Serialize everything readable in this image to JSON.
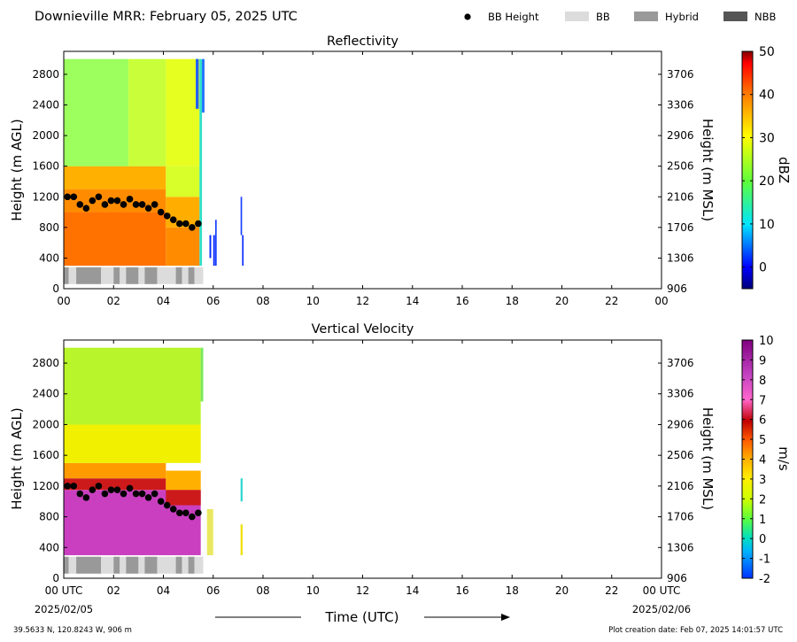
{
  "page": {
    "title": "Downieville MRR:  February 05, 2025 UTC",
    "footer_left": "39.5633 N, 120.8243 W, 906 m",
    "footer_right": "Plot creation date: Feb 07, 2025 14:01:57 UTC",
    "xaxis_label": "Time (UTC)",
    "date_start": "2025/02/05",
    "date_end": "2025/02/06"
  },
  "legend": {
    "items": [
      {
        "label": "BB Height",
        "kind": "marker",
        "color": "#000000"
      },
      {
        "label": "BB",
        "kind": "swatch",
        "color": "#dcdcdc"
      },
      {
        "label": "Hybrid",
        "kind": "swatch",
        "color": "#999999"
      },
      {
        "label": "NBB",
        "kind": "swatch",
        "color": "#555555"
      }
    ]
  },
  "chart_data": [
    {
      "type": "heatmap",
      "title": "Reflectivity",
      "ylabel": "Height (m AGL)",
      "y2label": "Height (m MSL)",
      "colorbar_label": "dBZ",
      "xlim": [
        0,
        24
      ],
      "ylim": [
        0,
        3100
      ],
      "y2_offset": 906,
      "xticks": [
        "00",
        "02",
        "04",
        "06",
        "08",
        "10",
        "12",
        "14",
        "16",
        "18",
        "20",
        "22",
        "00"
      ],
      "yticks": [
        0,
        400,
        800,
        1200,
        1600,
        2000,
        2400,
        2800
      ],
      "y2ticks": [
        "906",
        "1306",
        "1706",
        "2106",
        "2506",
        "2906",
        "3306",
        "3706"
      ],
      "colorbar": {
        "min": -5,
        "max": 50,
        "ticks": [
          "0",
          "10",
          "20",
          "30",
          "40",
          "50"
        ],
        "tick_values": [
          0,
          10,
          20,
          30,
          40,
          50
        ]
      },
      "bb_height": {
        "x": [
          0.15,
          0.4,
          0.65,
          0.9,
          1.15,
          1.4,
          1.65,
          1.9,
          2.15,
          2.4,
          2.65,
          2.9,
          3.15,
          3.4,
          3.65,
          3.9,
          4.15,
          4.4,
          4.65,
          4.9,
          5.15,
          5.4
        ],
        "y": [
          1200,
          1200,
          1100,
          1050,
          1150,
          1200,
          1100,
          1150,
          1150,
          1100,
          1170,
          1100,
          1100,
          1050,
          1100,
          1000,
          950,
          900,
          850,
          850,
          800,
          850
        ]
      },
      "bb_type_bar": {
        "segments": [
          {
            "start": 0.0,
            "end": 0.2,
            "type": "Hybrid"
          },
          {
            "start": 0.2,
            "end": 0.5,
            "type": "BB"
          },
          {
            "start": 0.5,
            "end": 1.5,
            "type": "Hybrid"
          },
          {
            "start": 1.5,
            "end": 2.0,
            "type": "BB"
          },
          {
            "start": 2.0,
            "end": 2.25,
            "type": "Hybrid"
          },
          {
            "start": 2.25,
            "end": 2.5,
            "type": "BB"
          },
          {
            "start": 2.5,
            "end": 3.0,
            "type": "Hybrid"
          },
          {
            "start": 3.0,
            "end": 3.25,
            "type": "BB"
          },
          {
            "start": 3.25,
            "end": 3.75,
            "type": "Hybrid"
          },
          {
            "start": 3.75,
            "end": 4.5,
            "type": "BB"
          },
          {
            "start": 4.5,
            "end": 4.75,
            "type": "Hybrid"
          },
          {
            "start": 4.75,
            "end": 5.0,
            "type": "BB"
          },
          {
            "start": 5.0,
            "end": 5.25,
            "type": "Hybrid"
          },
          {
            "start": 5.25,
            "end": 5.6,
            "type": "BB"
          }
        ]
      },
      "fields": [
        {
          "x0": 0.0,
          "x1": 4.1,
          "y0": 300,
          "y1": 1000,
          "color": "#ff7200"
        },
        {
          "x0": 0.0,
          "x1": 4.1,
          "y0": 1000,
          "y1": 1300,
          "color": "#ff8c00"
        },
        {
          "x0": 0.0,
          "x1": 4.1,
          "y0": 1300,
          "y1": 1600,
          "color": "#ffb000"
        },
        {
          "x0": 4.1,
          "x1": 5.45,
          "y0": 300,
          "y1": 800,
          "color": "#ff8c00"
        },
        {
          "x0": 4.1,
          "x1": 5.45,
          "y0": 800,
          "y1": 1200,
          "color": "#ffae00"
        },
        {
          "x0": 4.1,
          "x1": 5.45,
          "y0": 1200,
          "y1": 1600,
          "color": "#d8ff2a"
        },
        {
          "x0": 0.0,
          "x1": 2.6,
          "y0": 1600,
          "y1": 3000,
          "color": "#9cff5e"
        },
        {
          "x0": 2.6,
          "x1": 4.1,
          "y0": 1600,
          "y1": 3000,
          "color": "#c8ff3a"
        },
        {
          "x0": 4.1,
          "x1": 5.45,
          "y0": 1600,
          "y1": 3000,
          "color": "#e6ff20"
        },
        {
          "x0": 5.45,
          "x1": 5.55,
          "y0": 300,
          "y1": 3000,
          "color": "#2ee0c8"
        },
        {
          "x0": 5.3,
          "x1": 5.42,
          "y0": 2350,
          "y1": 3000,
          "color": "#1d5fff"
        },
        {
          "x0": 5.55,
          "x1": 5.65,
          "y0": 2300,
          "y1": 3000,
          "color": "#1f6fff"
        },
        {
          "x0": 5.85,
          "x1": 5.92,
          "y0": 400,
          "y1": 700,
          "color": "#0a2cff"
        },
        {
          "x0": 6.0,
          "x1": 6.07,
          "y0": 300,
          "y1": 700,
          "color": "#0a2cff"
        },
        {
          "x0": 6.08,
          "x1": 6.14,
          "y0": 300,
          "y1": 900,
          "color": "#1840ff"
        },
        {
          "x0": 7.1,
          "x1": 7.16,
          "y0": 700,
          "y1": 1200,
          "color": "#1840ff"
        },
        {
          "x0": 7.16,
          "x1": 7.22,
          "y0": 300,
          "y1": 700,
          "color": "#0a2cff"
        }
      ]
    },
    {
      "type": "heatmap",
      "title": "Vertical Velocity",
      "ylabel": "Height (m AGL)",
      "y2label": "Height (m MSL)",
      "colorbar_label": "m/s",
      "xlim": [
        0,
        24
      ],
      "ylim": [
        0,
        3100
      ],
      "y2_offset": 906,
      "xticks": [
        "00 UTC",
        "02",
        "04",
        "06",
        "08",
        "10",
        "12",
        "14",
        "16",
        "18",
        "20",
        "22",
        "00 UTC"
      ],
      "yticks": [
        0,
        400,
        800,
        1200,
        1600,
        2000,
        2400,
        2800
      ],
      "y2ticks": [
        "906",
        "1306",
        "1706",
        "2106",
        "2506",
        "2906",
        "3306",
        "3706"
      ],
      "colorbar": {
        "min": -2,
        "max": 10,
        "ticks": [
          "-2",
          "-1",
          "0",
          "1",
          "2",
          "3",
          "4",
          "5",
          "6",
          "7",
          "8",
          "9",
          "10"
        ],
        "tick_values": [
          -2,
          -1,
          0,
          1,
          2,
          3,
          4,
          5,
          6,
          7,
          8,
          9,
          10
        ]
      },
      "bb_height": {
        "x": [
          0.15,
          0.4,
          0.65,
          0.9,
          1.15,
          1.4,
          1.65,
          1.9,
          2.15,
          2.4,
          2.65,
          2.9,
          3.15,
          3.4,
          3.65,
          3.9,
          4.15,
          4.4,
          4.65,
          4.9,
          5.15,
          5.4
        ],
        "y": [
          1200,
          1200,
          1100,
          1050,
          1150,
          1200,
          1100,
          1150,
          1150,
          1100,
          1170,
          1100,
          1100,
          1050,
          1100,
          1000,
          950,
          900,
          850,
          850,
          800,
          850
        ]
      },
      "bb_type_bar": {
        "segments": [
          {
            "start": 0.0,
            "end": 0.2,
            "type": "Hybrid"
          },
          {
            "start": 0.2,
            "end": 0.5,
            "type": "BB"
          },
          {
            "start": 0.5,
            "end": 1.5,
            "type": "Hybrid"
          },
          {
            "start": 1.5,
            "end": 2.0,
            "type": "BB"
          },
          {
            "start": 2.0,
            "end": 2.25,
            "type": "Hybrid"
          },
          {
            "start": 2.25,
            "end": 2.5,
            "type": "BB"
          },
          {
            "start": 2.5,
            "end": 3.0,
            "type": "Hybrid"
          },
          {
            "start": 3.0,
            "end": 3.25,
            "type": "BB"
          },
          {
            "start": 3.25,
            "end": 3.75,
            "type": "Hybrid"
          },
          {
            "start": 3.75,
            "end": 4.5,
            "type": "BB"
          },
          {
            "start": 4.5,
            "end": 4.75,
            "type": "Hybrid"
          },
          {
            "start": 4.75,
            "end": 5.0,
            "type": "BB"
          },
          {
            "start": 5.0,
            "end": 5.25,
            "type": "Hybrid"
          },
          {
            "start": 5.25,
            "end": 5.6,
            "type": "BB"
          }
        ]
      },
      "fields": [
        {
          "x0": 0.0,
          "x1": 5.5,
          "y0": 300,
          "y1": 1150,
          "color": "#c93fc0"
        },
        {
          "x0": 0.0,
          "x1": 4.1,
          "y0": 1150,
          "y1": 1300,
          "color": "#cc1a1a"
        },
        {
          "x0": 0.0,
          "x1": 4.1,
          "y0": 1300,
          "y1": 1500,
          "color": "#ff9a00"
        },
        {
          "x0": 4.1,
          "x1": 5.5,
          "y0": 950,
          "y1": 1150,
          "color": "#cc1a1a"
        },
        {
          "x0": 4.1,
          "x1": 5.5,
          "y0": 1150,
          "y1": 1400,
          "color": "#ffb000"
        },
        {
          "x0": 0.0,
          "x1": 5.5,
          "y0": 1500,
          "y1": 2000,
          "color": "#f0f000"
        },
        {
          "x0": 0.0,
          "x1": 5.5,
          "y0": 2000,
          "y1": 3000,
          "color": "#b8f52a"
        },
        {
          "x0": 5.5,
          "x1": 5.6,
          "y0": 2300,
          "y1": 3000,
          "color": "#7aea5a"
        },
        {
          "x0": 5.75,
          "x1": 6.0,
          "y0": 300,
          "y1": 900,
          "color": "#e8e860"
        },
        {
          "x0": 7.1,
          "x1": 7.18,
          "y0": 300,
          "y1": 700,
          "color": "#f0e000"
        },
        {
          "x0": 7.1,
          "x1": 7.18,
          "y0": 1000,
          "y1": 1300,
          "color": "#30d8d0"
        }
      ]
    }
  ]
}
